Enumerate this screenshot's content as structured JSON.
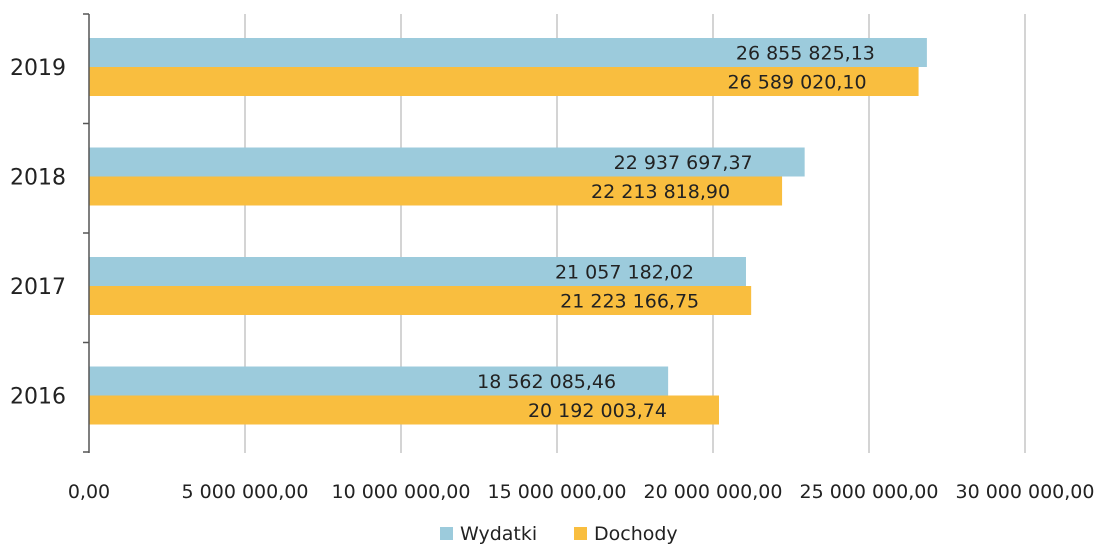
{
  "chart_data": {
    "type": "bar",
    "orientation": "horizontal",
    "categories": [
      "2019",
      "2018",
      "2017",
      "2016"
    ],
    "series": [
      {
        "name": "Wydatki",
        "color": "#9ccbdc",
        "values": [
          26855825.13,
          22937697.37,
          21057182.02,
          18562085.46
        ],
        "labels": [
          "26 855 825,13",
          "22 937 697,37",
          "21 057 182,02",
          "18 562 085,46"
        ]
      },
      {
        "name": "Dochody",
        "color": "#f9be3f",
        "values": [
          26589020.1,
          22213818.9,
          21223166.75,
          20192003.74
        ],
        "labels": [
          "26 589 020,10",
          "22 213 818,90",
          "21 223 166,75",
          "20 192 003,74"
        ]
      }
    ],
    "xlim": [
      0,
      30000000
    ],
    "x_ticks": [
      0,
      5000000,
      10000000,
      15000000,
      20000000,
      25000000,
      30000000
    ],
    "x_tick_labels": [
      "0,00",
      "5 000 000,00",
      "10 000 000,00",
      "15 000 000,00",
      "20 000 000,00",
      "25 000 000,00",
      "30 000 000,00"
    ],
    "grid": true,
    "legend_position": "bottom"
  }
}
